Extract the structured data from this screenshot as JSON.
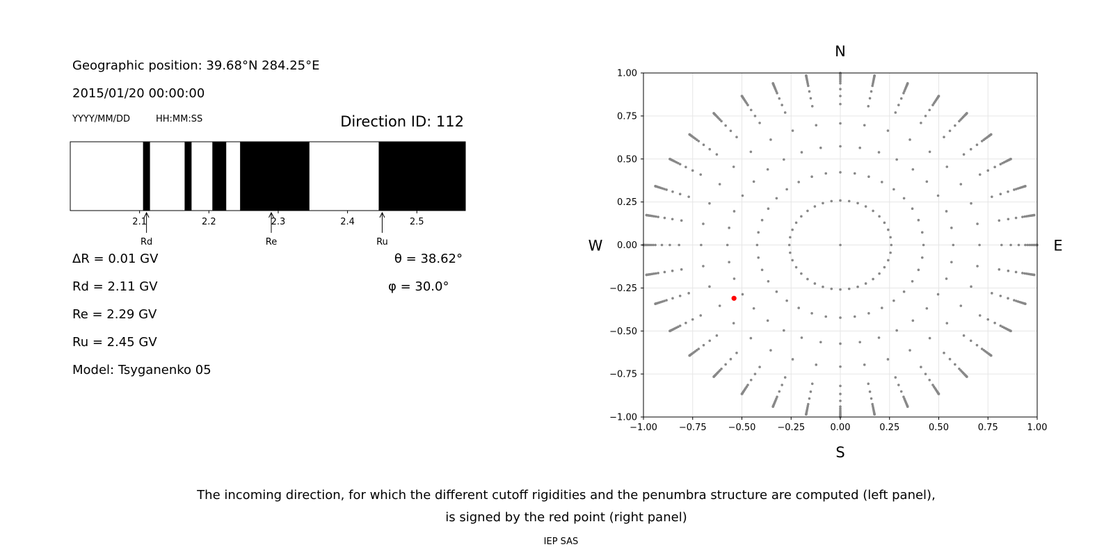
{
  "left_panel": {
    "geo_position": "Geographic position: 39.68°N 284.25°E",
    "datetime": "2015/01/20 00:00:00",
    "date_format": "YYYY/MM/DD",
    "time_format": "HH:MM:SS",
    "direction_id": "Direction ID: 112",
    "delta_r": "ΔR = 0.01 GV",
    "rd": "Rd = 2.11 GV",
    "re": "Re = 2.29 GV",
    "ru": "Ru = 2.45 GV",
    "model": "Model: Tsyganenko 05",
    "theta": "θ = 38.62°",
    "phi": "φ = 30.0°"
  },
  "caption": {
    "line1": "The incoming direction, for which the different cutoff rigidities and the penumbra structure are computed (left panel),",
    "line2": "is signed by the red point (right panel)"
  },
  "footer": "IEP SAS",
  "chart_data": [
    {
      "type": "penumbra_bar",
      "xlim": [
        2.0,
        2.57
      ],
      "ticks": [
        2.1,
        2.2,
        2.3,
        2.4,
        2.5
      ],
      "tick_labels": [
        "2.1",
        "2.2",
        "2.3",
        "2.4",
        "2.5"
      ],
      "forbidden_bands": [
        [
          2.105,
          2.115
        ],
        [
          2.165,
          2.175
        ],
        [
          2.205,
          2.225
        ],
        [
          2.245,
          2.345
        ],
        [
          2.445,
          2.57
        ]
      ],
      "markers": [
        {
          "label": "Rd",
          "value": 2.11
        },
        {
          "label": "Re",
          "value": 2.29
        },
        {
          "label": "Ru",
          "value": 2.45
        }
      ],
      "colors": {
        "forbidden": "#000000",
        "allowed": "#ffffff"
      }
    },
    {
      "type": "scatter",
      "xlim": [
        -1.0,
        1.0
      ],
      "ylim": [
        -1.0,
        1.0
      ],
      "xticks": [
        -1.0,
        -0.75,
        -0.5,
        -0.25,
        0.0,
        0.25,
        0.5,
        0.75,
        1.0
      ],
      "xtick_labels": [
        "−1.00",
        "−0.75",
        "−0.50",
        "−0.25",
        "0.00",
        "0.25",
        "0.50",
        "0.75",
        "1.00"
      ],
      "yticks": [
        1.0,
        0.75,
        0.5,
        0.25,
        0.0,
        -0.25,
        -0.5,
        -0.75,
        -1.0
      ],
      "ytick_labels": [
        "1.00",
        "0.75",
        "0.50",
        "0.25",
        "0.00",
        "−0.25",
        "−0.50",
        "−0.75",
        "−1.00"
      ],
      "grid": true,
      "compass": {
        "north": "N",
        "south": "S",
        "west": "W",
        "east": "E"
      },
      "directions": {
        "zenith_angles_deg": [
          0,
          15,
          25,
          35,
          45,
          55,
          60,
          65,
          70,
          72,
          74,
          76,
          78,
          80,
          82,
          84,
          86,
          88,
          90
        ],
        "azimuth_step_deg": 10,
        "color": "#888888"
      },
      "selected_point": {
        "x": -0.54,
        "y": -0.31,
        "color": "#ff0000"
      }
    }
  ]
}
